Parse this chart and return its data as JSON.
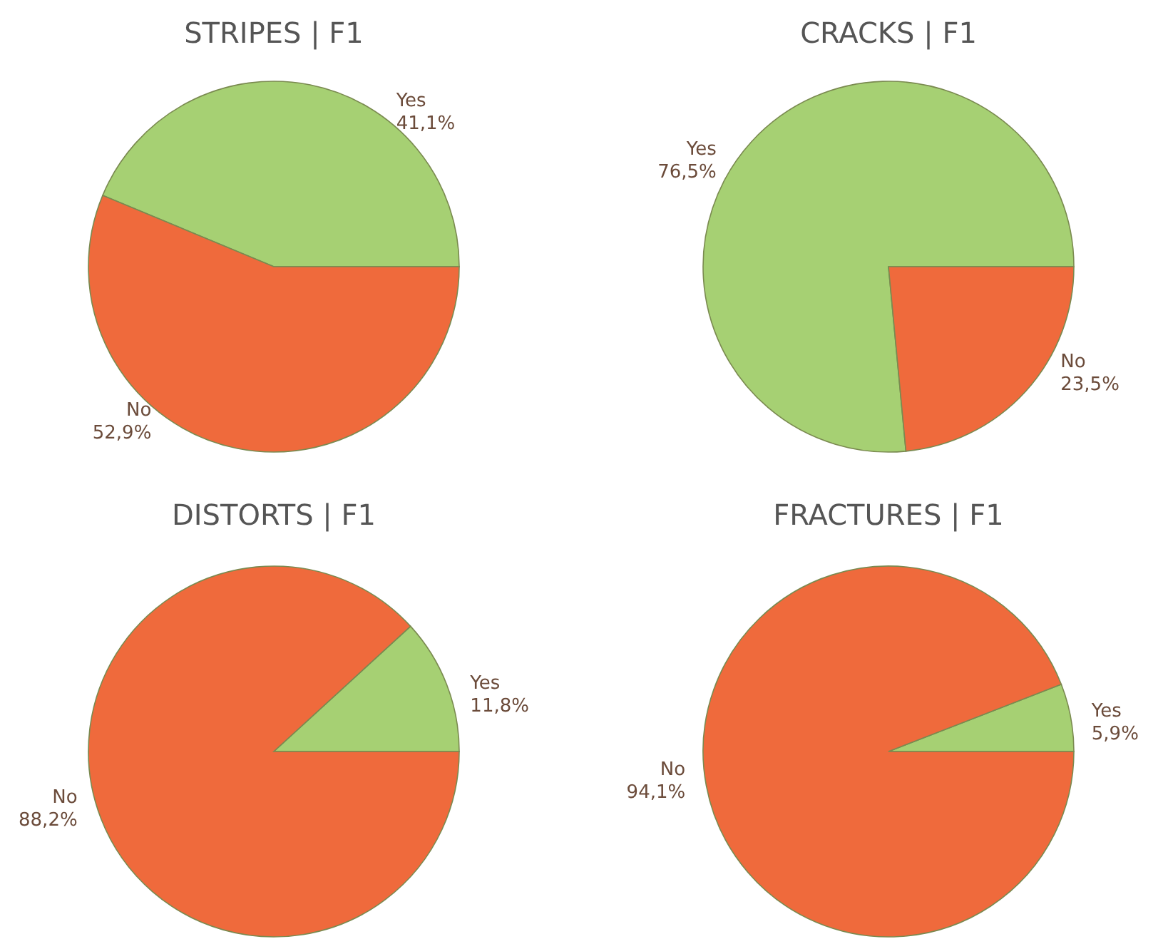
{
  "chart_data": [
    {
      "type": "pie",
      "title": "STRIPES | F1",
      "categories": [
        "Yes",
        "No"
      ],
      "values": [
        41.1,
        52.9
      ],
      "value_labels": [
        "41,1%",
        "52,9%"
      ],
      "colors": [
        "#a6d073",
        "#ef6a3c"
      ]
    },
    {
      "type": "pie",
      "title": "CRACKS | F1",
      "categories": [
        "Yes",
        "No"
      ],
      "values": [
        76.5,
        23.5
      ],
      "value_labels": [
        "76,5%",
        "23,5%"
      ],
      "colors": [
        "#a6d073",
        "#ef6a3c"
      ]
    },
    {
      "type": "pie",
      "title": "DISTORTS | F1",
      "categories": [
        "Yes",
        "No"
      ],
      "values": [
        11.8,
        88.2
      ],
      "value_labels": [
        "11,8%",
        "88,2%"
      ],
      "colors": [
        "#a6d073",
        "#ef6a3c"
      ]
    },
    {
      "type": "pie",
      "title": "FRACTURES | F1",
      "categories": [
        "Yes",
        "No"
      ],
      "values": [
        5.9,
        94.1
      ],
      "value_labels": [
        "5,9%",
        "94,1%"
      ],
      "colors": [
        "#a6d073",
        "#ef6a3c"
      ]
    }
  ]
}
